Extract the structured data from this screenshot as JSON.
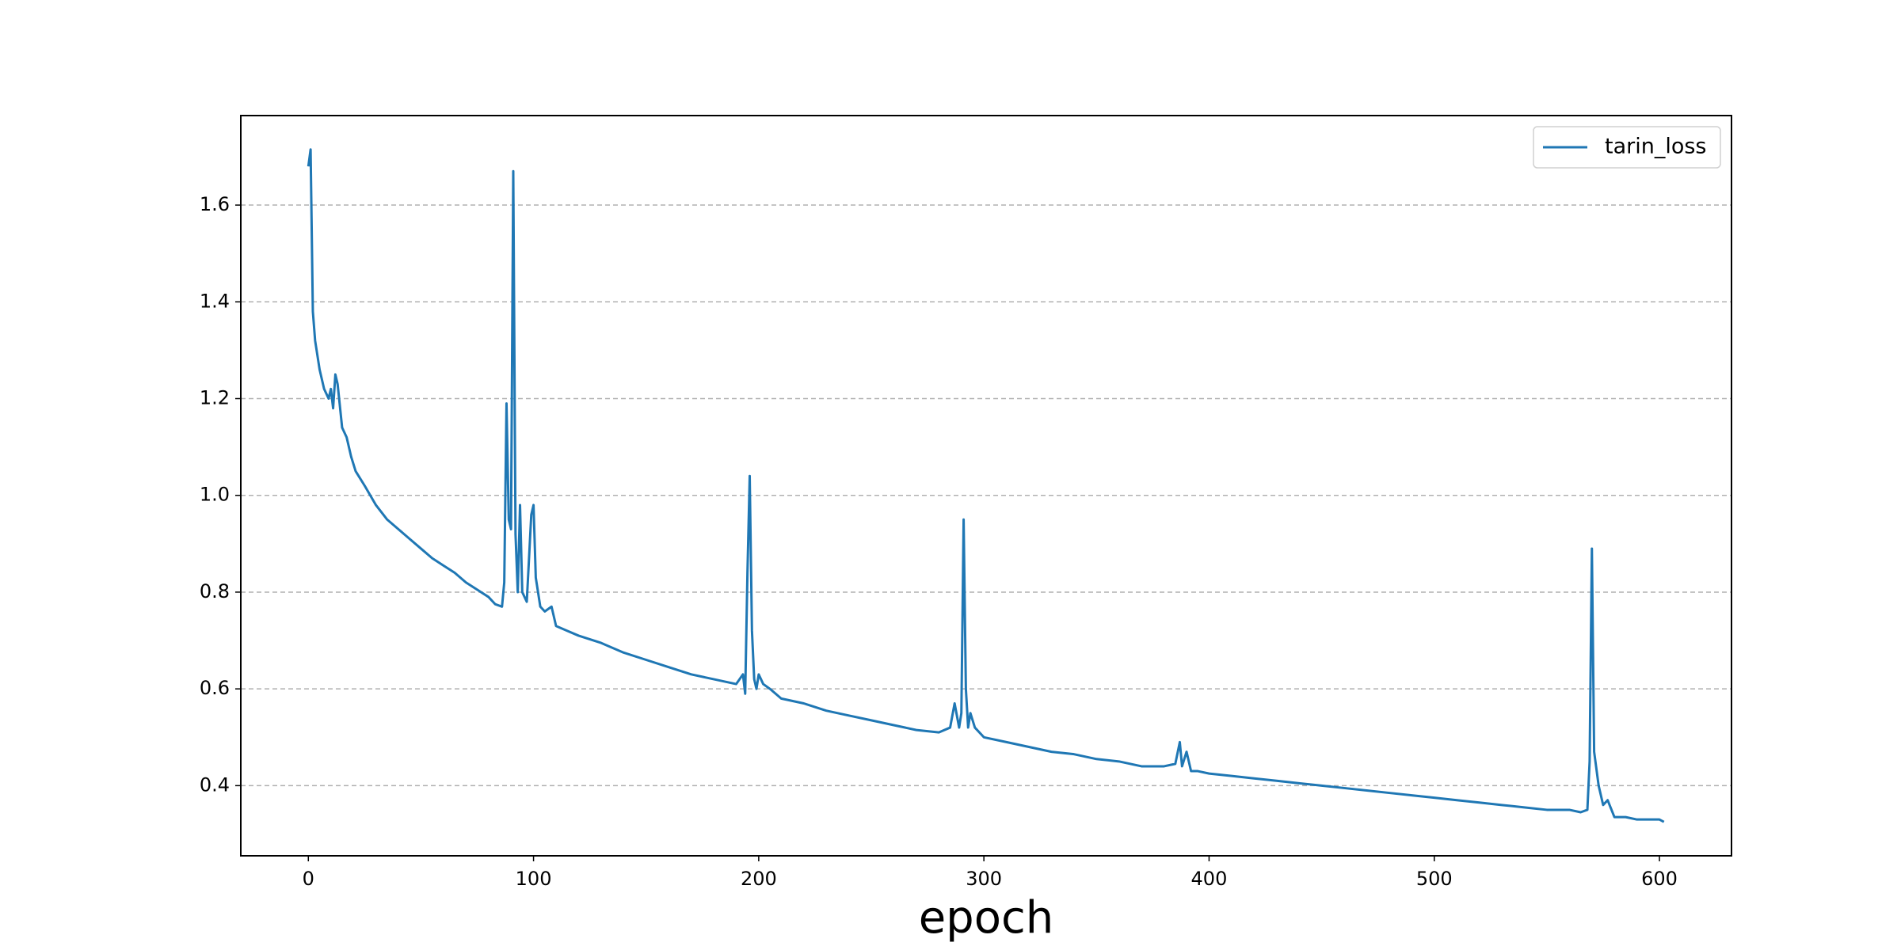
{
  "chart_data": {
    "type": "line",
    "xlabel": "epoch",
    "x": [
      0,
      1,
      2,
      3,
      5,
      7,
      9,
      10,
      11,
      12,
      13,
      15,
      17,
      19,
      21,
      25,
      30,
      35,
      40,
      45,
      50,
      55,
      60,
      65,
      70,
      75,
      80,
      83,
      86,
      87,
      88,
      89,
      90,
      91,
      92,
      93,
      94,
      95,
      97,
      99,
      100,
      101,
      103,
      105,
      108,
      110,
      115,
      120,
      130,
      140,
      150,
      160,
      170,
      180,
      190,
      193,
      194,
      195,
      196,
      197,
      198,
      199,
      200,
      202,
      205,
      210,
      220,
      230,
      240,
      250,
      260,
      270,
      280,
      285,
      287,
      289,
      290,
      291,
      292,
      293,
      294,
      296,
      300,
      310,
      320,
      330,
      340,
      350,
      360,
      370,
      380,
      385,
      387,
      388,
      390,
      392,
      395,
      400,
      410,
      420,
      430,
      440,
      450,
      460,
      470,
      480,
      490,
      500,
      510,
      520,
      530,
      540,
      550,
      560,
      565,
      568,
      569,
      570,
      571,
      573,
      575,
      577,
      580,
      585,
      590,
      595,
      600,
      602
    ],
    "series": [
      {
        "name": "tarin_loss",
        "color": "#1f77b4",
        "values": [
          1.68,
          1.715,
          1.38,
          1.32,
          1.26,
          1.22,
          1.2,
          1.22,
          1.18,
          1.25,
          1.23,
          1.14,
          1.12,
          1.08,
          1.05,
          1.02,
          0.98,
          0.95,
          0.93,
          0.91,
          0.89,
          0.87,
          0.855,
          0.84,
          0.82,
          0.805,
          0.79,
          0.775,
          0.77,
          0.82,
          1.19,
          0.95,
          0.93,
          1.67,
          0.92,
          0.8,
          0.98,
          0.8,
          0.78,
          0.96,
          0.98,
          0.83,
          0.77,
          0.76,
          0.77,
          0.73,
          0.72,
          0.71,
          0.695,
          0.675,
          0.66,
          0.645,
          0.63,
          0.62,
          0.61,
          0.63,
          0.59,
          0.84,
          1.04,
          0.72,
          0.62,
          0.6,
          0.63,
          0.61,
          0.6,
          0.58,
          0.57,
          0.555,
          0.545,
          0.535,
          0.525,
          0.515,
          0.51,
          0.52,
          0.57,
          0.52,
          0.55,
          0.95,
          0.6,
          0.52,
          0.55,
          0.52,
          0.5,
          0.49,
          0.48,
          0.47,
          0.465,
          0.455,
          0.45,
          0.44,
          0.44,
          0.445,
          0.49,
          0.44,
          0.47,
          0.43,
          0.43,
          0.425,
          0.42,
          0.415,
          0.41,
          0.405,
          0.4,
          0.395,
          0.39,
          0.385,
          0.38,
          0.375,
          0.37,
          0.365,
          0.36,
          0.355,
          0.35,
          0.35,
          0.345,
          0.35,
          0.45,
          0.89,
          0.47,
          0.4,
          0.36,
          0.37,
          0.335,
          0.335,
          0.33,
          0.33,
          0.33,
          0.325
        ]
      }
    ],
    "xlim": [
      -30,
      632
    ],
    "xticks": [
      0,
      100,
      200,
      300,
      400,
      500,
      600
    ],
    "ylim": [
      0.255,
      1.785
    ],
    "yticks": [
      0.4,
      0.6,
      0.8,
      {
        "value": 1.0,
        "label": "1.0"
      },
      1.2,
      1.4,
      1.6
    ],
    "grid": true,
    "grid_axis": "y",
    "legend": "upper right"
  }
}
